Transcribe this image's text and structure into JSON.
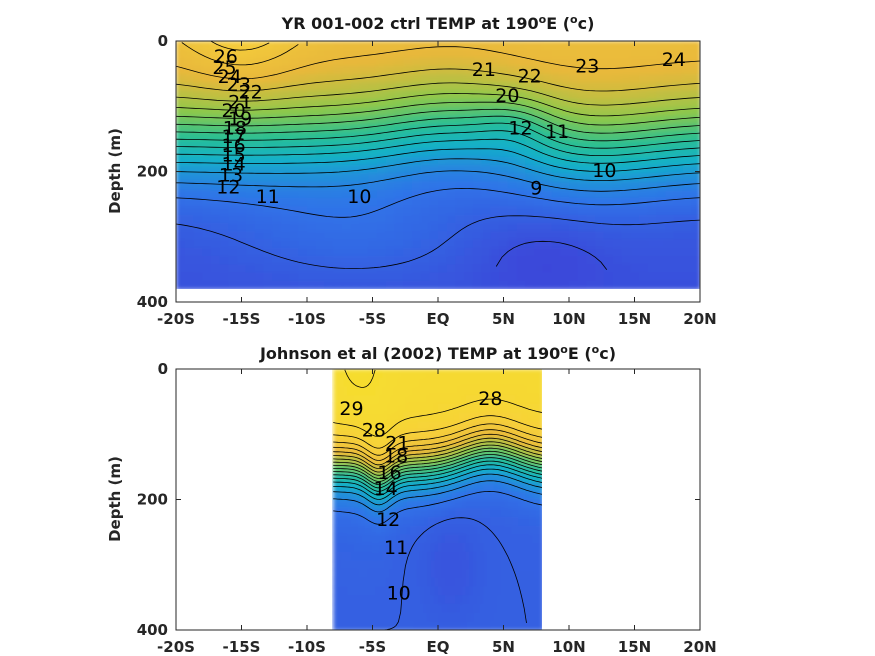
{
  "figure": {
    "panels": [
      {
        "title_main": "YR 001-002 ctrl TEMP at 190",
        "title_sup1": "o",
        "title_mid": "E (",
        "title_sup2": "o",
        "title_end": "c)"
      },
      {
        "title_main": "Johnson et al (2002) TEMP at 190",
        "title_sup1": "o",
        "title_mid": "E (",
        "title_sup2": "o",
        "title_end": "c)"
      }
    ]
  },
  "chart_data": [
    {
      "type": "heatmap",
      "subtype": "filled contour",
      "title": "YR 001-002 ctrl TEMP at 190°E (°c)",
      "xlabel": "",
      "ylabel": "Depth (m)",
      "xlim": [
        -20,
        20
      ],
      "ylim": [
        400,
        0
      ],
      "y_reversed": true,
      "xticks": [
        -20,
        -15,
        -10,
        -5,
        0,
        5,
        10,
        15,
        20
      ],
      "xticklabels": [
        "-20S",
        "-15S",
        "-10S",
        "-5S",
        "EQ",
        "5N",
        "10N",
        "15N",
        "20N"
      ],
      "yticks": [
        0,
        200,
        400
      ],
      "yticklabels": [
        "0",
        "200",
        "400"
      ],
      "data_extent": {
        "lat": [
          -20,
          20
        ],
        "depth": [
          0,
          380
        ]
      },
      "colormap": [
        "#3e3dd6",
        "#2f74e8",
        "#12b0c9",
        "#2ec08f",
        "#8cc84c",
        "#e8b83a",
        "#f7d03a"
      ],
      "color_range": [
        8,
        27
      ],
      "contour_levels": [
        9,
        10,
        11,
        12,
        13,
        14,
        15,
        16,
        17,
        18,
        19,
        20,
        21,
        22,
        23,
        24,
        25,
        26
      ],
      "contour_labels": [
        {
          "text": "26",
          "lat": -16.2,
          "depth": 25
        },
        {
          "text": "25",
          "lat": -16.3,
          "depth": 42
        },
        {
          "text": "24",
          "lat": -15.9,
          "depth": 56
        },
        {
          "text": "23",
          "lat": -15.2,
          "depth": 68
        },
        {
          "text": "22",
          "lat": -14.3,
          "depth": 80
        },
        {
          "text": "21",
          "lat": -15.1,
          "depth": 95
        },
        {
          "text": "20",
          "lat": -15.6,
          "depth": 108
        },
        {
          "text": "19",
          "lat": -15.1,
          "depth": 120
        },
        {
          "text": "18",
          "lat": -15.5,
          "depth": 135
        },
        {
          "text": "17",
          "lat": -15.6,
          "depth": 148
        },
        {
          "text": "16",
          "lat": -15.6,
          "depth": 162
        },
        {
          "text": "15",
          "lat": -15.6,
          "depth": 176
        },
        {
          "text": "14",
          "lat": -15.6,
          "depth": 190
        },
        {
          "text": "13",
          "lat": -15.8,
          "depth": 207
        },
        {
          "text": "12",
          "lat": -16.0,
          "depth": 225
        },
        {
          "text": "11",
          "lat": -13.0,
          "depth": 240
        },
        {
          "text": "10",
          "lat": -6.0,
          "depth": 240
        },
        {
          "text": "9",
          "lat": 7.5,
          "depth": 227
        },
        {
          "text": "10",
          "lat": 12.7,
          "depth": 200
        },
        {
          "text": "11",
          "lat": 9.1,
          "depth": 140
        },
        {
          "text": "12",
          "lat": 6.3,
          "depth": 135
        },
        {
          "text": "20",
          "lat": 5.3,
          "depth": 85
        },
        {
          "text": "21",
          "lat": 3.5,
          "depth": 45
        },
        {
          "text": "22",
          "lat": 7.0,
          "depth": 55
        },
        {
          "text": "23",
          "lat": 11.4,
          "depth": 40
        },
        {
          "text": "24",
          "lat": 18.0,
          "depth": 30
        }
      ]
    },
    {
      "type": "heatmap",
      "subtype": "filled contour",
      "title": "Johnson et al (2002) TEMP at 190°E (°c)",
      "xlabel": "",
      "ylabel": "Depth (m)",
      "xlim": [
        -20,
        20
      ],
      "ylim": [
        400,
        0
      ],
      "y_reversed": true,
      "xticks": [
        -20,
        -15,
        -10,
        -5,
        0,
        5,
        10,
        15,
        20
      ],
      "xticklabels": [
        "-20S",
        "-15S",
        "-10S",
        "-5S",
        "EQ",
        "5N",
        "10N",
        "15N",
        "20N"
      ],
      "yticks": [
        0,
        200,
        400
      ],
      "yticklabels": [
        "0",
        "200",
        "400"
      ],
      "data_extent": {
        "lat": [
          -8,
          8
        ],
        "depth": [
          0,
          400
        ]
      },
      "colormap": [
        "#3e3dd6",
        "#2f74e8",
        "#12b0c9",
        "#2ec08f",
        "#8cc84c",
        "#e8b83a",
        "#f7d03a",
        "#f5e22a"
      ],
      "color_range": [
        8,
        30
      ],
      "contour_labels": [
        {
          "text": "29",
          "lat": -6.6,
          "depth": 62
        },
        {
          "text": "28",
          "lat": 4.0,
          "depth": 47
        },
        {
          "text": "28",
          "lat": -4.9,
          "depth": 95
        },
        {
          "text": "21",
          "lat": -3.1,
          "depth": 115
        },
        {
          "text": "18",
          "lat": -3.2,
          "depth": 135
        },
        {
          "text": "16",
          "lat": -3.7,
          "depth": 160
        },
        {
          "text": "14",
          "lat": -4.0,
          "depth": 185
        },
        {
          "text": "12",
          "lat": -3.8,
          "depth": 232
        },
        {
          "text": "11",
          "lat": -3.2,
          "depth": 275
        },
        {
          "text": "10",
          "lat": -3.0,
          "depth": 345
        }
      ]
    }
  ]
}
